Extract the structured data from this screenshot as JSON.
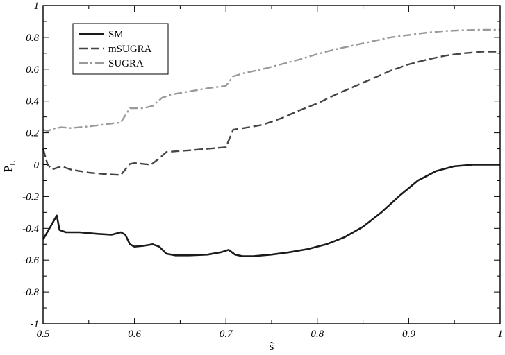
{
  "chart_data": {
    "type": "line",
    "title": "",
    "xlabel": "ŝ",
    "ylabel": "P",
    "ylabel_sub": "L",
    "xlim": [
      0.5,
      1.0
    ],
    "ylim": [
      -1.0,
      1.0
    ],
    "xticks": [
      0.5,
      0.6,
      0.7,
      0.8,
      0.9,
      1.0
    ],
    "xtick_labels": [
      "0.5",
      "0.6",
      "0.7",
      "0.8",
      "0.9",
      "1"
    ],
    "yticks": [
      -1.0,
      -0.8,
      -0.6,
      -0.4,
      -0.2,
      0.0,
      0.2,
      0.4,
      0.6,
      0.8,
      1.0
    ],
    "ytick_labels": [
      "-1",
      "-0.8",
      "-0.6",
      "-0.4",
      "-0.2",
      "0",
      "0.2",
      "0.4",
      "0.6",
      "0.8",
      "1"
    ],
    "grid": false,
    "legend_position": "top-left",
    "series": [
      {
        "name": "SM",
        "style": "solid",
        "color": "#1a1a1a",
        "points": [
          [
            0.5,
            -0.47
          ],
          [
            0.505,
            -0.42
          ],
          [
            0.51,
            -0.37
          ],
          [
            0.515,
            -0.32
          ],
          [
            0.518,
            -0.41
          ],
          [
            0.525,
            -0.425
          ],
          [
            0.54,
            -0.425
          ],
          [
            0.56,
            -0.435
          ],
          [
            0.575,
            -0.44
          ],
          [
            0.585,
            -0.425
          ],
          [
            0.59,
            -0.44
          ],
          [
            0.595,
            -0.5
          ],
          [
            0.6,
            -0.515
          ],
          [
            0.61,
            -0.51
          ],
          [
            0.62,
            -0.5
          ],
          [
            0.627,
            -0.515
          ],
          [
            0.635,
            -0.56
          ],
          [
            0.645,
            -0.57
          ],
          [
            0.66,
            -0.57
          ],
          [
            0.68,
            -0.565
          ],
          [
            0.695,
            -0.55
          ],
          [
            0.703,
            -0.535
          ],
          [
            0.71,
            -0.565
          ],
          [
            0.718,
            -0.575
          ],
          [
            0.73,
            -0.575
          ],
          [
            0.75,
            -0.565
          ],
          [
            0.77,
            -0.55
          ],
          [
            0.79,
            -0.53
          ],
          [
            0.81,
            -0.5
          ],
          [
            0.83,
            -0.455
          ],
          [
            0.85,
            -0.39
          ],
          [
            0.87,
            -0.3
          ],
          [
            0.89,
            -0.195
          ],
          [
            0.91,
            -0.1
          ],
          [
            0.93,
            -0.04
          ],
          [
            0.95,
            -0.01
          ],
          [
            0.97,
            0.0
          ],
          [
            1.0,
            0.0
          ]
        ]
      },
      {
        "name": "mSUGRA",
        "style": "dashed",
        "color": "#444444",
        "points": [
          [
            0.5,
            0.1
          ],
          [
            0.505,
            0.0
          ],
          [
            0.51,
            -0.03
          ],
          [
            0.515,
            -0.02
          ],
          [
            0.52,
            -0.01
          ],
          [
            0.53,
            -0.03
          ],
          [
            0.55,
            -0.05
          ],
          [
            0.57,
            -0.06
          ],
          [
            0.585,
            -0.065
          ],
          [
            0.595,
            0.005
          ],
          [
            0.6,
            0.01
          ],
          [
            0.61,
            0.005
          ],
          [
            0.618,
            0.0
          ],
          [
            0.625,
            0.03
          ],
          [
            0.635,
            0.08
          ],
          [
            0.66,
            0.09
          ],
          [
            0.69,
            0.105
          ],
          [
            0.7,
            0.11
          ],
          [
            0.708,
            0.22
          ],
          [
            0.72,
            0.23
          ],
          [
            0.74,
            0.25
          ],
          [
            0.76,
            0.29
          ],
          [
            0.78,
            0.34
          ],
          [
            0.8,
            0.385
          ],
          [
            0.82,
            0.44
          ],
          [
            0.84,
            0.49
          ],
          [
            0.86,
            0.54
          ],
          [
            0.88,
            0.59
          ],
          [
            0.9,
            0.63
          ],
          [
            0.92,
            0.66
          ],
          [
            0.94,
            0.685
          ],
          [
            0.96,
            0.7
          ],
          [
            0.98,
            0.71
          ],
          [
            1.0,
            0.71
          ]
        ]
      },
      {
        "name": "SUGRA",
        "style": "dashdot",
        "color": "#999999",
        "points": [
          [
            0.5,
            0.22
          ],
          [
            0.505,
            0.21
          ],
          [
            0.51,
            0.225
          ],
          [
            0.52,
            0.235
          ],
          [
            0.53,
            0.23
          ],
          [
            0.55,
            0.24
          ],
          [
            0.57,
            0.255
          ],
          [
            0.585,
            0.265
          ],
          [
            0.595,
            0.355
          ],
          [
            0.61,
            0.355
          ],
          [
            0.62,
            0.37
          ],
          [
            0.63,
            0.42
          ],
          [
            0.64,
            0.44
          ],
          [
            0.66,
            0.46
          ],
          [
            0.68,
            0.48
          ],
          [
            0.7,
            0.495
          ],
          [
            0.708,
            0.555
          ],
          [
            0.72,
            0.575
          ],
          [
            0.74,
            0.6
          ],
          [
            0.76,
            0.63
          ],
          [
            0.78,
            0.66
          ],
          [
            0.8,
            0.695
          ],
          [
            0.82,
            0.725
          ],
          [
            0.84,
            0.75
          ],
          [
            0.86,
            0.775
          ],
          [
            0.88,
            0.8
          ],
          [
            0.9,
            0.815
          ],
          [
            0.92,
            0.83
          ],
          [
            0.94,
            0.84
          ],
          [
            0.96,
            0.845
          ],
          [
            0.98,
            0.848
          ],
          [
            1.0,
            0.848
          ]
        ]
      }
    ]
  }
}
